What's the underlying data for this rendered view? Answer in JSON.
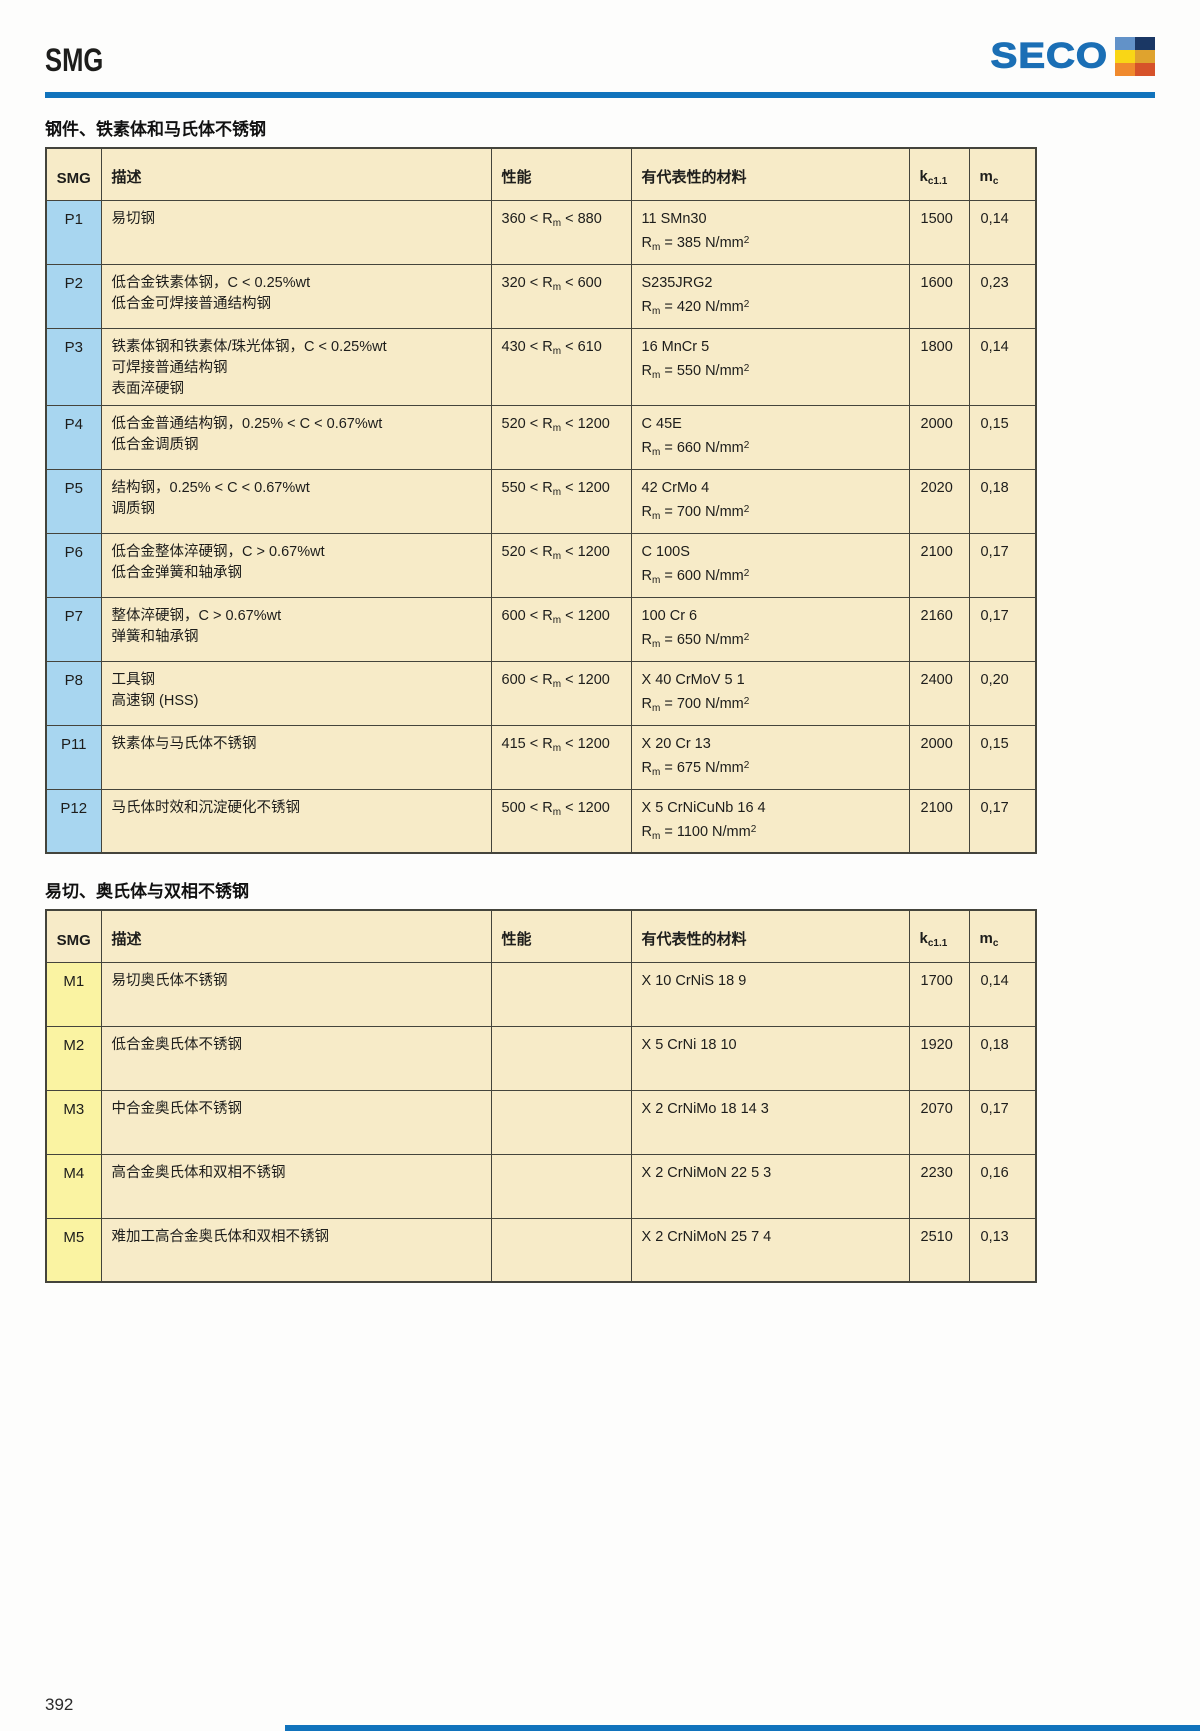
{
  "page": {
    "title": "SMG",
    "page_number": "392"
  },
  "logo": {
    "text": "SECO"
  },
  "colors": {
    "accent_blue": "#1173BC",
    "table_bg": "#F7EBC8",
    "p_smg_cell": "#A8D6F0",
    "m_smg_cell": "#FAF3A2",
    "border": "#44443C",
    "logo_blue": "#1B6FB5",
    "logo_squares": [
      "#6292C8",
      "#1A3764",
      "#F9D616",
      "#DFA32E",
      "#F08A2D",
      "#D6522A"
    ]
  },
  "sections": [
    {
      "title": "钢件、铁素体和马氏体不锈钢",
      "smg_style": "p",
      "columns": {
        "smg": "SMG",
        "desc": "描述",
        "perf": "性能",
        "material": "有代表性的材料",
        "kc": "k~c1.1~",
        "mc": "m~c~"
      },
      "rows": [
        {
          "smg": "P1",
          "desc": [
            "易切钢"
          ],
          "perf": "360 < R~m~ < 880",
          "material": [
            "11 SMn30",
            "R~m~ = 385 N/mm^2^"
          ],
          "kc": "1500",
          "mc": "0,14"
        },
        {
          "smg": "P2",
          "desc": [
            "低合金铁素体钢，C < 0.25%wt",
            "低合金可焊接普通结构钢"
          ],
          "perf": "320 < R~m~ < 600",
          "material": [
            "S235JRG2",
            "R~m~ = 420 N/mm^2^"
          ],
          "kc": "1600",
          "mc": "0,23"
        },
        {
          "smg": "P3",
          "desc": [
            "铁素体钢和铁素体/珠光体钢，C < 0.25%wt",
            "可焊接普通结构钢",
            "表面淬硬钢"
          ],
          "perf": "430 < R~m~ < 610",
          "material": [
            "16 MnCr 5",
            "R~m~ = 550 N/mm^2^"
          ],
          "kc": "1800",
          "mc": "0,14"
        },
        {
          "smg": "P4",
          "desc": [
            "低合金普通结构钢，0.25% < C < 0.67%wt",
            "低合金调质钢"
          ],
          "perf": "520 < R~m~ < 1200",
          "material": [
            "C 45E",
            "R~m~ = 660 N/mm^2^"
          ],
          "kc": "2000",
          "mc": "0,15"
        },
        {
          "smg": "P5",
          "desc": [
            "结构钢，0.25% < C < 0.67%wt",
            "调质钢"
          ],
          "perf": "550 < R~m~ < 1200",
          "material": [
            "42 CrMo 4",
            "R~m~ = 700 N/mm^2^"
          ],
          "kc": "2020",
          "mc": "0,18"
        },
        {
          "smg": "P6",
          "desc": [
            "低合金整体淬硬钢，C > 0.67%wt",
            "低合金弹簧和轴承钢"
          ],
          "perf": "520 < R~m~ < 1200",
          "material": [
            "C 100S",
            "R~m~ = 600 N/mm^2^"
          ],
          "kc": "2100",
          "mc": "0,17"
        },
        {
          "smg": "P7",
          "desc": [
            "整体淬硬钢，C > 0.67%wt",
            "弹簧和轴承钢"
          ],
          "perf": "600 < R~m~ < 1200",
          "material": [
            "100 Cr 6",
            "R~m~ = 650 N/mm^2^"
          ],
          "kc": "2160",
          "mc": "0,17"
        },
        {
          "smg": "P8",
          "desc": [
            "工具钢",
            "高速钢 (HSS)"
          ],
          "perf": "600 < R~m~ < 1200",
          "material": [
            "X 40 CrMoV 5 1",
            "R~m~ = 700 N/mm^2^"
          ],
          "kc": "2400",
          "mc": "0,20"
        },
        {
          "smg": "P11",
          "desc": [
            "铁素体与马氏体不锈钢"
          ],
          "perf": "415 < R~m~ < 1200",
          "material": [
            "X 20 Cr 13",
            "R~m~ = 675 N/mm^2^"
          ],
          "kc": "2000",
          "mc": "0,15"
        },
        {
          "smg": "P12",
          "desc": [
            "马氏体时效和沉淀硬化不锈钢"
          ],
          "perf": "500 < R~m~ < 1200",
          "material": [
            "X 5 CrNiCuNb 16 4",
            "R~m~ = 1100 N/mm^2^"
          ],
          "kc": "2100",
          "mc": "0,17"
        }
      ]
    },
    {
      "title": "易切、奥氏体与双相不锈钢",
      "smg_style": "m",
      "columns": {
        "smg": "SMG",
        "desc": "描述",
        "perf": "性能",
        "material": "有代表性的材料",
        "kc": "k~c1.1~",
        "mc": "m~c~"
      },
      "rows": [
        {
          "smg": "M1",
          "desc": [
            "易切奥氏体不锈钢"
          ],
          "perf": "",
          "material": [
            "X 10 CrNiS 18 9"
          ],
          "kc": "1700",
          "mc": "0,14"
        },
        {
          "smg": "M2",
          "desc": [
            "低合金奥氏体不锈钢"
          ],
          "perf": "",
          "material": [
            "X 5 CrNi 18 10"
          ],
          "kc": "1920",
          "mc": "0,18"
        },
        {
          "smg": "M3",
          "desc": [
            "中合金奥氏体不锈钢"
          ],
          "perf": "",
          "material": [
            "X 2 CrNiMo 18 14 3"
          ],
          "kc": "2070",
          "mc": "0,17"
        },
        {
          "smg": "M4",
          "desc": [
            "高合金奥氏体和双相不锈钢"
          ],
          "perf": "",
          "material": [
            "X 2 CrNiMoN 22 5 3"
          ],
          "kc": "2230",
          "mc": "0,16"
        },
        {
          "smg": "M5",
          "desc": [
            "难加工高合金奥氏体和双相不锈钢"
          ],
          "perf": "",
          "material": [
            "X 2 CrNiMoN 25 7 4"
          ],
          "kc": "2510",
          "mc": "0,13"
        }
      ]
    }
  ]
}
